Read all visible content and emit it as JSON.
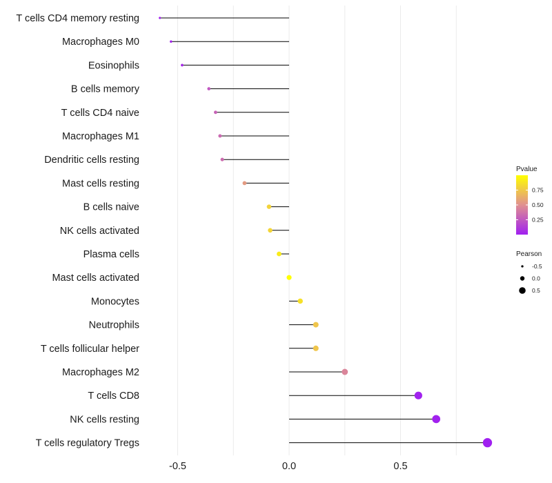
{
  "chart_data": {
    "type": "lollipop",
    "title": "",
    "xlabel": "",
    "ylabel": "",
    "xlim": [
      -0.62,
      0.92
    ],
    "xticks": [
      -0.5,
      0.0,
      0.5
    ],
    "xtick_labels": [
      "-0.5",
      "0.0",
      "0.5"
    ],
    "minor_grid": [
      -0.25,
      0.25,
      0.75
    ],
    "categories": [
      "T cells CD4 memory resting",
      "Macrophages M0",
      "Eosinophils",
      "B cells memory",
      "T cells CD4 naive",
      "Macrophages M1",
      "Dendritic cells resting",
      "Mast cells resting",
      "B cells naive",
      "NK cells activated",
      "Plasma cells",
      "Mast cells activated",
      "Monocytes",
      "Neutrophils",
      "T cells follicular helper",
      "Macrophages M2",
      "T cells CD8",
      "NK cells resting",
      "T cells regulatory  Tregs"
    ],
    "pearson": [
      -0.58,
      -0.53,
      -0.48,
      -0.36,
      -0.33,
      -0.31,
      -0.3,
      -0.2,
      -0.09,
      -0.085,
      -0.045,
      0.0,
      0.05,
      0.12,
      0.12,
      0.25,
      0.58,
      0.66,
      0.89
    ],
    "pvalue": [
      0.01,
      0.02,
      0.04,
      0.25,
      0.3,
      0.33,
      0.34,
      0.55,
      0.8,
      0.81,
      0.91,
      1.0,
      0.86,
      0.74,
      0.74,
      0.45,
      0.01,
      0.01,
      0.001
    ],
    "color_scale": {
      "title": "Pvalue",
      "low_color": "#a020f0",
      "high_color": "#ffff00",
      "breaks": [
        0.25,
        0.5,
        0.75
      ],
      "labels": [
        "0.25",
        "0.50",
        "0.75"
      ],
      "limits": [
        0.0,
        1.0
      ]
    },
    "size_scale": {
      "title": "Pearson",
      "breaks": [
        -0.5,
        0.0,
        0.5
      ],
      "labels": [
        "-0.5",
        "0.0",
        "0.5"
      ],
      "limits": [
        -0.6,
        0.9
      ]
    },
    "legend_position": "right"
  }
}
